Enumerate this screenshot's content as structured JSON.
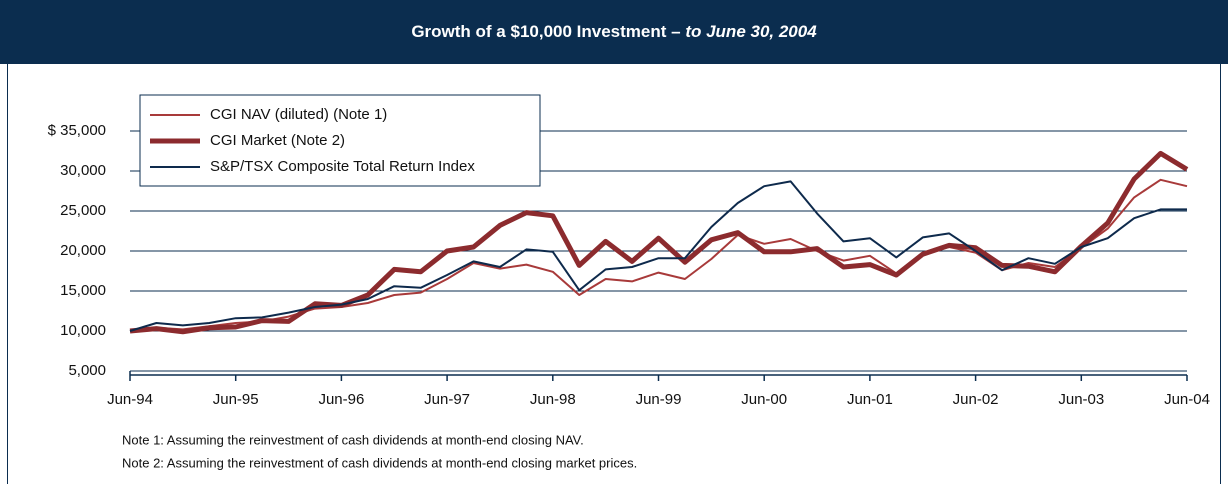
{
  "chart_data": {
    "type": "line",
    "title": "Growth of a $10,000 Investment –",
    "subtitle": "to June 30, 2004",
    "notes": [
      "Note 1: Assuming the reinvestment of cash dividends at month-end closing NAV.",
      "Note 2: Assuming the reinvestment of cash dividends at month-end closing market prices."
    ],
    "x": [
      1994.5,
      1994.75,
      1995,
      1995.25,
      1995.5,
      1995.75,
      1996,
      1996.25,
      1996.5,
      1996.75,
      1997,
      1997.25,
      1997.5,
      1997.75,
      1998,
      1998.25,
      1998.5,
      1998.75,
      1999,
      1999.25,
      1999.5,
      1999.75,
      2000,
      2000.25,
      2000.5,
      2000.75,
      2001,
      2001.25,
      2001.5,
      2001.75,
      2002,
      2002.25,
      2002.5,
      2002.75,
      2003,
      2003.25,
      2003.5,
      2003.75,
      2004,
      2004.25,
      2004.5
    ],
    "series": [
      {
        "name": "CGI NAV (diluted) (Note 1)",
        "color": "#a83a3a",
        "width": 2,
        "values": [
          10000,
          10400,
          10200,
          10600,
          11000,
          11200,
          11800,
          12800,
          13000,
          13500,
          14500,
          14800,
          16500,
          18500,
          17800,
          18300,
          17400,
          14500,
          16500,
          16200,
          17300,
          16500,
          19000,
          22000,
          20900,
          21500,
          20000,
          18800,
          19400,
          17200,
          19800,
          20500,
          19800,
          17600,
          18500,
          18000,
          20400,
          22800,
          26700,
          28900,
          28100
        ]
      },
      {
        "name": "CGI Market (Note 2)",
        "color": "#8c2b2e",
        "width": 5,
        "values": [
          10000,
          10300,
          9900,
          10400,
          10500,
          11300,
          11200,
          13400,
          13200,
          14500,
          17700,
          17400,
          20000,
          20500,
          23200,
          24800,
          24400,
          18200,
          21200,
          18700,
          21600,
          18600,
          21400,
          22300,
          19900,
          19900,
          20300,
          18000,
          18300,
          17000,
          19600,
          20700,
          20400,
          18200,
          18100,
          17400,
          20600,
          23500,
          29000,
          32200,
          30200
        ]
      },
      {
        "name": "S&P/TSX Composite Total Return Index",
        "color": "#0e2a4c",
        "width": 2,
        "values": [
          10000,
          11000,
          10700,
          11000,
          11600,
          11700,
          12300,
          13000,
          13300,
          14000,
          15600,
          15400,
          17000,
          18700,
          18000,
          20200,
          19900,
          15100,
          17700,
          18000,
          19100,
          19100,
          23000,
          26000,
          28100,
          28700,
          24700,
          21200,
          21600,
          19200,
          21700,
          22200,
          20000,
          17600,
          19100,
          18400,
          20500,
          21600,
          24100,
          25200,
          25200
        ]
      }
    ],
    "xlim": [
      1994.5,
      2004.5
    ],
    "xticks": [
      {
        "value": 1994.5,
        "label": "Jun-94"
      },
      {
        "value": 1995.5,
        "label": "Jun-95"
      },
      {
        "value": 1996.5,
        "label": "Jun-96"
      },
      {
        "value": 1997.5,
        "label": "Jun-97"
      },
      {
        "value": 1998.5,
        "label": "Jun-98"
      },
      {
        "value": 1999.5,
        "label": "Jun-99"
      },
      {
        "value": 2000.5,
        "label": "Jun-00"
      },
      {
        "value": 2001.5,
        "label": "Jun-01"
      },
      {
        "value": 2002.5,
        "label": "Jun-02"
      },
      {
        "value": 2003.5,
        "label": "Jun-03"
      },
      {
        "value": 2004.5,
        "label": "Jun-04"
      }
    ],
    "ylim": [
      4500,
      35000
    ],
    "yticks": [
      {
        "value": 5000,
        "label": "5,000"
      },
      {
        "value": 10000,
        "label": "10,000"
      },
      {
        "value": 15000,
        "label": "15,000"
      },
      {
        "value": 20000,
        "label": "20,000"
      },
      {
        "value": 25000,
        "label": "25,000"
      },
      {
        "value": 30000,
        "label": "30,000"
      },
      {
        "value": 35000,
        "label": "$ 35,000"
      }
    ],
    "grid": true,
    "legend": "upper left",
    "header_color": "#0b2d4f"
  }
}
